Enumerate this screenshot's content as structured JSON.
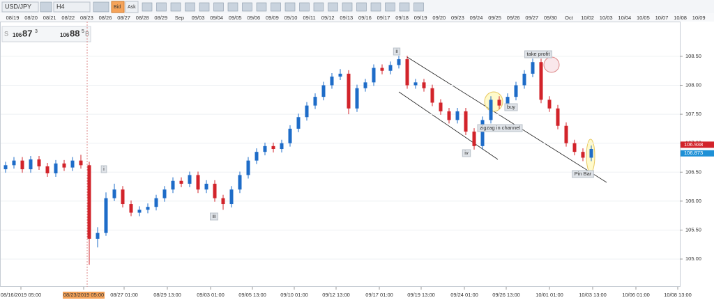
{
  "toolbar": {
    "symbol": "USD/JPY",
    "timeframe": "H4",
    "bid": "Bid",
    "ask": "Ask"
  },
  "price_panel": {
    "sell_label": "S",
    "sell_big": "106",
    "sell_pips": "87",
    "sell_frac": "3",
    "buy_big": "106",
    "buy_pips": "88",
    "buy_frac": "5",
    "buy_label": "B"
  },
  "top_dates": [
    "08/19",
    "08/20",
    "08/21",
    "08/22",
    "08/23",
    "08/26",
    "08/27",
    "08/28",
    "08/29",
    "Sep",
    "09/03",
    "09/04",
    "09/05",
    "09/06",
    "09/09",
    "09/10",
    "09/11",
    "09/12",
    "09/13",
    "09/16",
    "09/17",
    "09/18",
    "09/19",
    "09/20",
    "09/23",
    "09/24",
    "09/25",
    "09/26",
    "09/27",
    "09/30",
    "Oct",
    "10/02",
    "10/03",
    "10/04",
    "10/05",
    "10/07",
    "10/08",
    "10/09"
  ],
  "chart_data": {
    "type": "candlestick",
    "open": [
      106.55,
      106.62,
      106.7,
      106.55,
      106.72,
      106.6,
      106.48,
      106.65,
      106.58,
      106.7,
      106.62,
      105.35,
      105.45,
      106.05,
      106.2,
      105.95,
      105.8,
      105.85,
      105.9,
      106.05,
      106.2,
      106.35,
      106.3,
      106.45,
      106.2,
      106.3,
      106.05,
      105.95,
      106.2,
      106.45,
      106.7,
      106.85,
      106.95,
      106.9,
      107.0,
      107.25,
      107.45,
      107.65,
      107.8,
      108.0,
      108.15,
      108.2,
      107.6,
      107.95,
      108.05,
      108.3,
      108.25,
      108.35,
      108.45,
      108.0,
      108.05,
      107.95,
      107.7,
      107.55,
      107.4,
      107.55,
      107.2,
      106.95,
      107.4,
      107.75,
      107.65,
      107.8,
      108.0,
      108.2,
      108.4,
      107.75,
      107.6,
      107.3,
      107.0,
      106.85,
      106.75
    ],
    "high": [
      106.68,
      106.76,
      106.76,
      106.78,
      106.78,
      106.66,
      106.71,
      106.71,
      106.76,
      106.8,
      106.68,
      105.55,
      106.15,
      106.3,
      106.26,
      106.01,
      105.91,
      105.96,
      106.11,
      106.26,
      106.41,
      106.41,
      106.51,
      106.51,
      106.36,
      106.36,
      106.11,
      106.26,
      106.51,
      106.76,
      106.91,
      107.01,
      107.01,
      107.06,
      107.31,
      107.51,
      107.71,
      107.86,
      108.06,
      108.21,
      108.28,
      108.26,
      108.01,
      108.11,
      108.36,
      108.36,
      108.41,
      108.51,
      108.51,
      108.11,
      108.11,
      108.01,
      107.76,
      107.61,
      107.61,
      107.61,
      107.26,
      107.46,
      107.81,
      107.81,
      107.86,
      108.06,
      108.26,
      108.46,
      108.46,
      107.81,
      107.66,
      107.36,
      107.06,
      106.91,
      106.96
    ],
    "low": [
      106.49,
      106.56,
      106.49,
      106.49,
      106.54,
      106.42,
      106.42,
      106.52,
      106.52,
      106.56,
      104.9,
      105.2,
      105.4,
      106.0,
      105.89,
      105.74,
      105.74,
      105.79,
      105.84,
      105.99,
      106.14,
      106.24,
      106.24,
      106.14,
      106.14,
      105.99,
      105.85,
      105.89,
      106.14,
      106.39,
      106.64,
      106.79,
      106.84,
      106.84,
      106.94,
      107.19,
      107.39,
      107.59,
      107.74,
      107.94,
      108.09,
      107.5,
      107.54,
      107.89,
      107.99,
      108.19,
      108.19,
      108.29,
      107.94,
      107.94,
      107.89,
      107.64,
      107.49,
      107.34,
      107.34,
      107.14,
      106.89,
      106.89,
      107.34,
      107.59,
      107.59,
      107.74,
      107.94,
      108.14,
      107.69,
      107.54,
      107.24,
      106.94,
      106.79,
      106.69,
      106.69
    ],
    "close": [
      106.62,
      106.7,
      106.55,
      106.72,
      106.6,
      106.48,
      106.65,
      106.58,
      106.7,
      106.62,
      105.35,
      105.45,
      106.05,
      106.2,
      105.95,
      105.8,
      105.85,
      105.9,
      106.05,
      106.2,
      106.35,
      106.3,
      106.45,
      106.2,
      106.3,
      106.05,
      105.95,
      106.2,
      106.45,
      106.7,
      106.85,
      106.95,
      106.9,
      107.0,
      107.25,
      107.45,
      107.65,
      107.8,
      108.0,
      108.15,
      108.2,
      107.6,
      107.95,
      108.05,
      108.3,
      108.25,
      108.35,
      108.45,
      108.0,
      108.05,
      107.95,
      107.7,
      107.55,
      107.4,
      107.55,
      107.2,
      106.95,
      107.4,
      107.75,
      107.65,
      107.8,
      108.0,
      108.2,
      108.4,
      107.75,
      107.6,
      107.3,
      107.0,
      106.85,
      106.75,
      106.9
    ],
    "up_color": "#1e6cc8",
    "down_color": "#d2232a",
    "ylim": [
      104.52,
      109.1
    ],
    "yticks": [
      {
        "value": 105,
        "label": "105.00"
      },
      {
        "value": 105.5,
        "label": "105.50"
      },
      {
        "value": 106,
        "label": "106.00"
      },
      {
        "value": 106.5,
        "label": "106.50"
      },
      {
        "value": 107,
        "label": "107.00"
      },
      {
        "value": 107.5,
        "label": "107.50"
      },
      {
        "value": 108,
        "label": "108.00"
      },
      {
        "value": 108.5,
        "label": "108.50"
      }
    ],
    "grid": true,
    "price_tags": [
      {
        "value": 106.938,
        "color": "#d2232a"
      },
      {
        "value": 106.873,
        "color": "#1e90d6"
      }
    ],
    "xtick_labels": [
      "08/16/2019 05:00",
      "08/23/2019 05:00",
      "08/27 01:00",
      "08/29 13:00",
      "09/03 01:00",
      "09/05 13:00",
      "09/10 01:00",
      "09/12 13:00",
      "09/17 01:00",
      "09/19 13:00",
      "09/24 01:00",
      "09/26 13:00",
      "10/01 01:00",
      "10/03 13:00",
      "10/06 01:00",
      "10/08 13:00"
    ],
    "annotations": [
      "ii",
      "i",
      "iii",
      "iv",
      "take profit",
      "buy",
      "zigzag in channel",
      "Pin Bar"
    ]
  }
}
